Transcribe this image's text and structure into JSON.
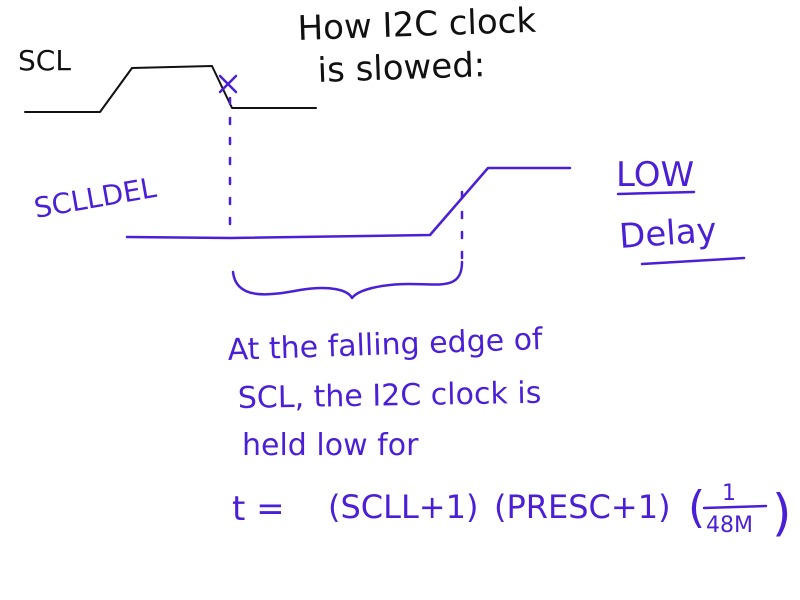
{
  "title": {
    "line1": "How I2C clock",
    "line2": "is slowed:"
  },
  "signals": {
    "scl_label": "SCL",
    "sclldel_label": "SCLLDEL"
  },
  "side_note": {
    "line1": "LOW",
    "line2": "Delay"
  },
  "explanation": {
    "line1": "At the falling edge of",
    "line2": "SCL, the I2C clock is",
    "line3": "held low for"
  },
  "formula": {
    "lhs": "t =",
    "term1": "(SCLL+1)",
    "term2": "(PRESC+1)",
    "frac_numer": "1",
    "frac_denom": "48M"
  },
  "colors": {
    "black_ink": "#111111",
    "purple_ink": "#4b1fd6"
  }
}
